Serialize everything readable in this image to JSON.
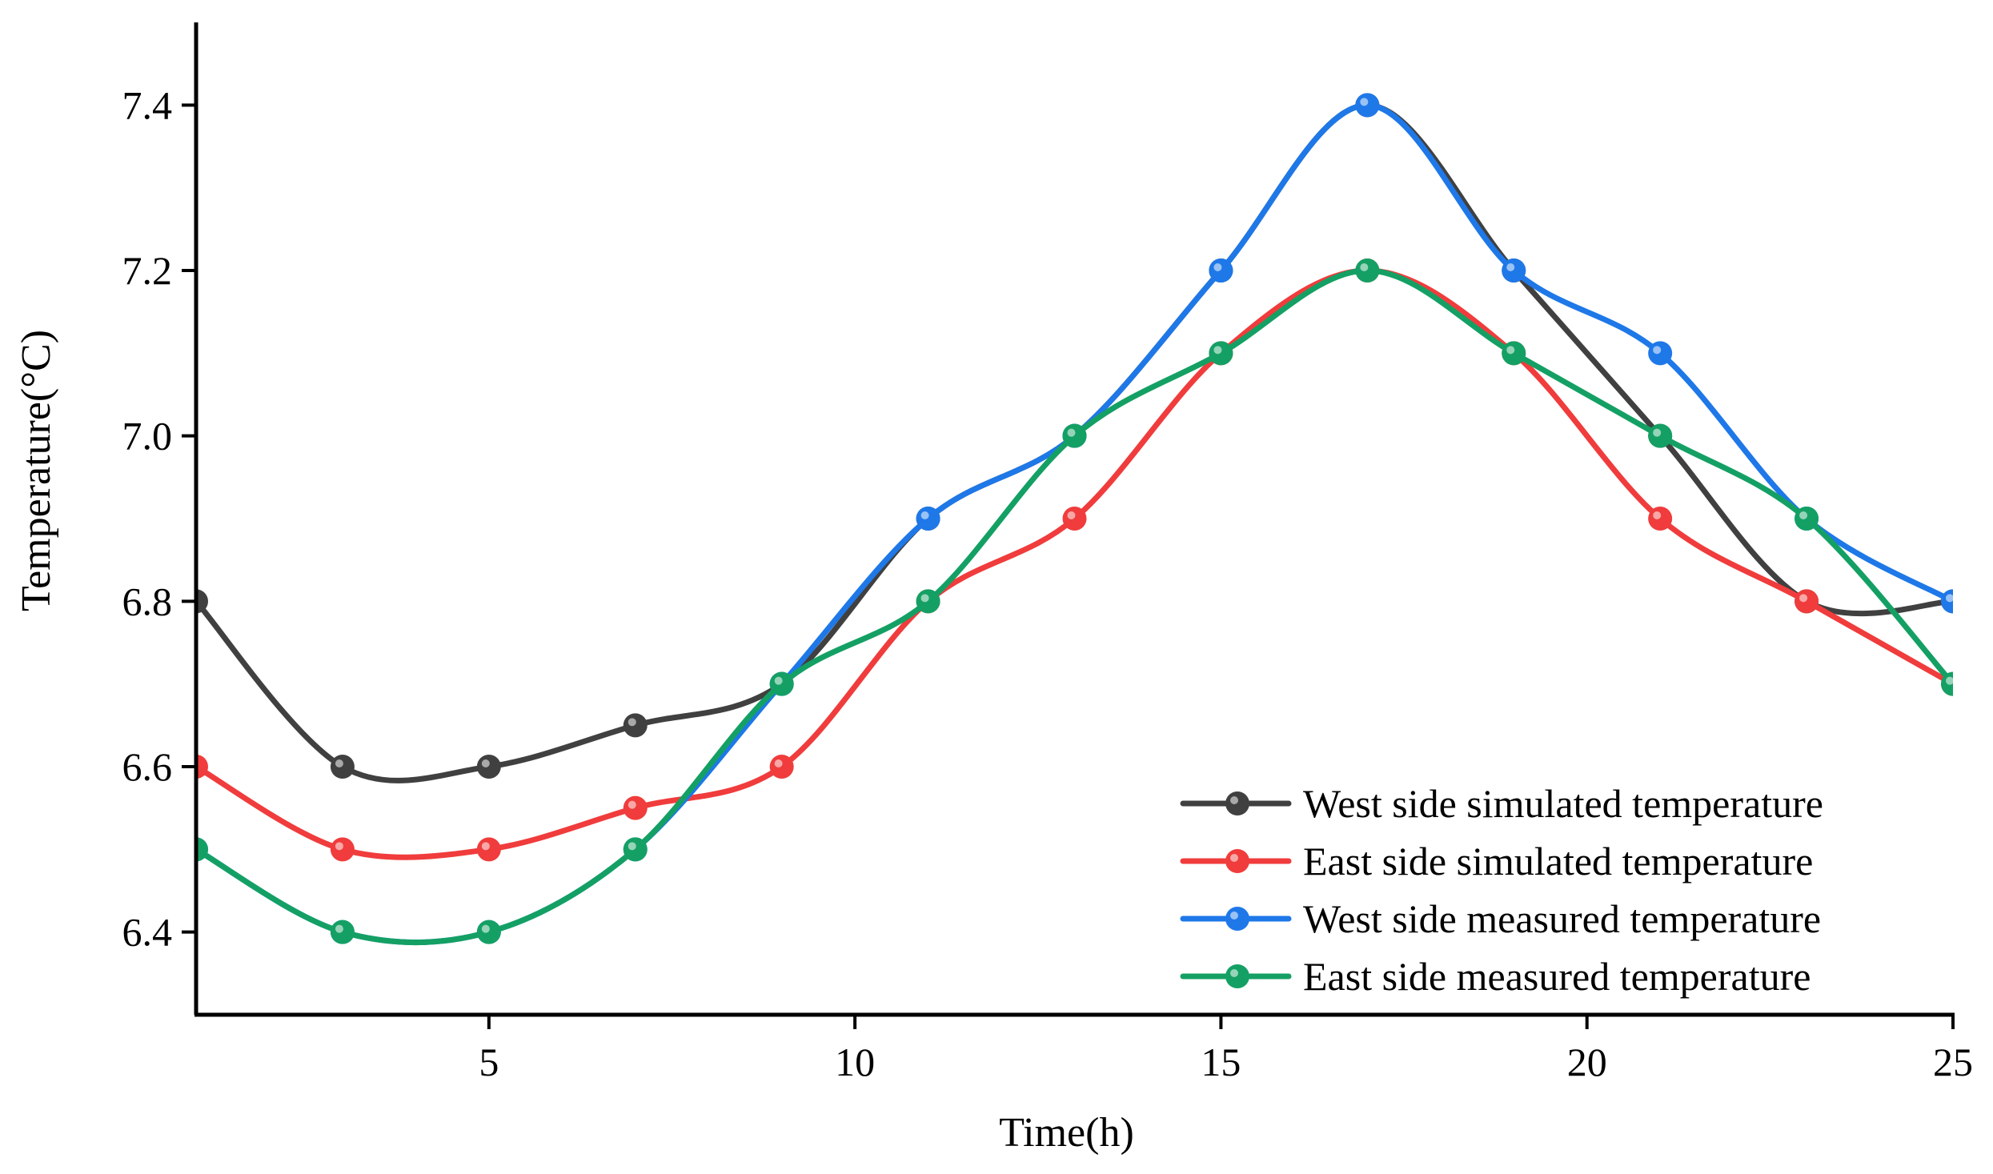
{
  "chart_data": {
    "type": "line",
    "title": "",
    "xlabel": "Time(h)",
    "ylabel": "Temperature(°C)",
    "xlim": [
      1,
      25
    ],
    "ylim": [
      6.3,
      7.5
    ],
    "xticks": [
      5,
      10,
      15,
      20,
      25
    ],
    "yticks": [
      6.4,
      6.6,
      6.8,
      7.0,
      7.2,
      7.4
    ],
    "xtick_labels": [
      "5",
      "10",
      "15",
      "20",
      "25"
    ],
    "ytick_labels": [
      "6.4",
      "6.6",
      "6.8",
      "7.0",
      "7.2",
      "7.4"
    ],
    "grid": false,
    "legend_position": "bottom-right",
    "x": [
      1,
      3,
      5,
      7,
      9,
      11,
      13,
      15,
      17,
      19,
      21,
      23,
      25
    ],
    "series": [
      {
        "name": "West side simulated temperature",
        "color": "#404040",
        "values": [
          6.8,
          6.6,
          6.6,
          6.65,
          6.7,
          6.9,
          7.0,
          7.2,
          7.4,
          7.2,
          7.0,
          6.8,
          6.8
        ]
      },
      {
        "name": "East side simulated temperature",
        "color": "#f03c3c",
        "values": [
          6.6,
          6.5,
          6.5,
          6.55,
          6.6,
          6.8,
          6.9,
          7.1,
          7.2,
          7.1,
          6.9,
          6.8,
          6.7
        ]
      },
      {
        "name": "West side measured temperature",
        "color": "#1e78e8",
        "values": [
          6.5,
          6.4,
          6.4,
          6.5,
          6.7,
          6.9,
          7.0,
          7.2,
          7.4,
          7.2,
          7.1,
          6.9,
          6.8
        ]
      },
      {
        "name": "East side measured temperature",
        "color": "#14a064",
        "values": [
          6.5,
          6.4,
          6.4,
          6.5,
          6.7,
          6.8,
          7.0,
          7.1,
          7.2,
          7.1,
          7.0,
          6.9,
          6.7
        ]
      }
    ]
  }
}
